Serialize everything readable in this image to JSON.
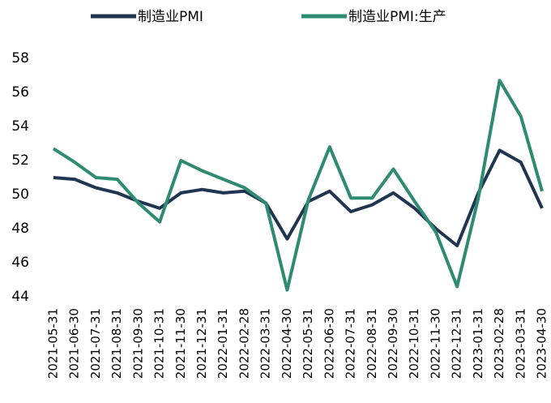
{
  "chart_data": {
    "type": "line",
    "categories": [
      "2021-05-31",
      "2021-06-30",
      "2021-07-31",
      "2021-08-31",
      "2021-09-30",
      "2021-10-31",
      "2021-11-30",
      "2021-12-31",
      "2022-01-31",
      "2022-02-28",
      "2022-03-31",
      "2022-04-30",
      "2022-05-31",
      "2022-06-30",
      "2022-07-31",
      "2022-08-31",
      "2022-09-30",
      "2022-10-31",
      "2022-11-30",
      "2022-12-31",
      "2023-01-31",
      "2023-02-28",
      "2023-03-31",
      "2023-04-30"
    ],
    "series": [
      {
        "name": "制造业PMI",
        "color": "#1f3550",
        "values": [
          51.0,
          50.9,
          50.4,
          50.1,
          49.6,
          49.2,
          50.1,
          50.3,
          50.1,
          50.2,
          49.5,
          47.4,
          49.6,
          50.2,
          49.0,
          49.4,
          50.1,
          49.2,
          48.0,
          47.0,
          50.1,
          52.6,
          51.9,
          49.2
        ]
      },
      {
        "name": "制造业PMI:生产",
        "color": "#2f8a72",
        "values": [
          52.7,
          51.9,
          51.0,
          50.9,
          49.5,
          48.4,
          52.0,
          51.4,
          50.9,
          50.4,
          49.5,
          44.4,
          49.7,
          52.8,
          49.8,
          49.8,
          51.5,
          49.6,
          47.8,
          44.6,
          49.8,
          56.7,
          54.6,
          50.2
        ]
      }
    ],
    "ylim": [
      44,
      58
    ],
    "yticks": [
      44,
      46,
      48,
      50,
      52,
      54,
      56,
      58
    ],
    "grid": false
  }
}
